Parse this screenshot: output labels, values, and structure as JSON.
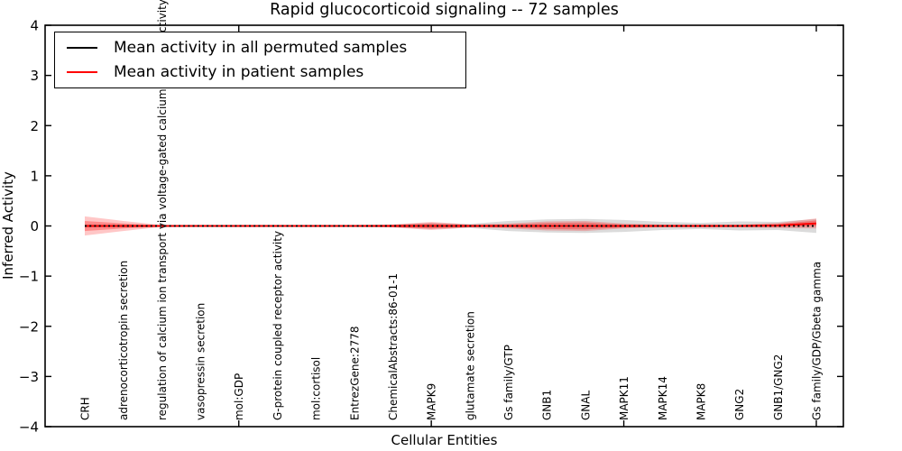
{
  "chart_data": {
    "type": "line",
    "title": "Rapid glucocorticoid signaling -- 72 samples",
    "xlabel": "Cellular Entities",
    "ylabel": "Inferred Activity",
    "ylim": [
      -4,
      4
    ],
    "yticks": [
      -4,
      -3,
      -2,
      -1,
      0,
      1,
      2,
      3,
      4
    ],
    "xtick_positions": [
      5,
      10,
      15,
      20
    ],
    "grid": false,
    "legend_position": "upper left",
    "categories": [
      "CRH",
      "adrenocorticotropin secretion",
      "regulation of calcium ion transport via voltage-gated calcium channel activity",
      "vasopressin secretion",
      "mol:GDP",
      "G-protein coupled receptor activity",
      "mol:cortisol",
      "EntrezGene:2778",
      "ChemicalAbstracts:86-01-1",
      "MAPK9",
      "glutamate secretion",
      "Gs family/GTP",
      "GNB1",
      "GNAL",
      "MAPK11",
      "MAPK14",
      "MAPK8",
      "GNG2",
      "GNB1/GNG2",
      "Gs family/GDP/Gbeta gamma"
    ],
    "series": [
      {
        "name": "Mean activity in all permuted samples",
        "color": "#000000",
        "linestyle": "dotted",
        "values": [
          0,
          0,
          0,
          0,
          0,
          0,
          0,
          0,
          0,
          0,
          0,
          0,
          0,
          0,
          0,
          0,
          0,
          0,
          0,
          0
        ]
      },
      {
        "name": "Mean activity in patient samples",
        "color": "#ff0000",
        "linestyle": "solid",
        "values": [
          0,
          0,
          0,
          0,
          0,
          0,
          0,
          0,
          0,
          0,
          0,
          0,
          0,
          0,
          0,
          0,
          0,
          0,
          0.01,
          0.05
        ]
      }
    ],
    "uncertainty_bands": [
      {
        "series": "permuted",
        "color": "#999999",
        "opacity": 0.35,
        "center": [
          0,
          0,
          0,
          0,
          0,
          0,
          0,
          0,
          0,
          0,
          0,
          0,
          0,
          0,
          0,
          0,
          0,
          0,
          0,
          0
        ],
        "half_width": [
          0.03,
          0.025,
          0.02,
          0.02,
          0.02,
          0.02,
          0.02,
          0.02,
          0.03,
          0.06,
          0.04,
          0.1,
          0.13,
          0.14,
          0.12,
          0.08,
          0.06,
          0.09,
          0.08,
          0.14
        ]
      },
      {
        "series": "patient-outer",
        "color": "#ff0000",
        "opacity": 0.22,
        "center": [
          0,
          0,
          0,
          0,
          0,
          0,
          0,
          0,
          0,
          0,
          0,
          0,
          0,
          0,
          0,
          0,
          0,
          0,
          0.01,
          0.05
        ],
        "half_width": [
          0.19,
          0.1,
          0.02,
          0.02,
          0.02,
          0.02,
          0.02,
          0.02,
          0.03,
          0.08,
          0.03,
          0.05,
          0.09,
          0.1,
          0.05,
          0.03,
          0.03,
          0.03,
          0.05,
          0.1
        ]
      },
      {
        "series": "patient-inner",
        "color": "#ff0000",
        "opacity": 0.3,
        "center": [
          0,
          0,
          0,
          0,
          0,
          0,
          0,
          0,
          0,
          0,
          0,
          0,
          0,
          0,
          0,
          0,
          0,
          0,
          0.01,
          0.05
        ],
        "half_width": [
          0.1,
          0.05,
          0.012,
          0.012,
          0.012,
          0.012,
          0.012,
          0.012,
          0.02,
          0.05,
          0.02,
          0.03,
          0.06,
          0.07,
          0.03,
          0.02,
          0.02,
          0.02,
          0.03,
          0.06
        ]
      }
    ]
  }
}
